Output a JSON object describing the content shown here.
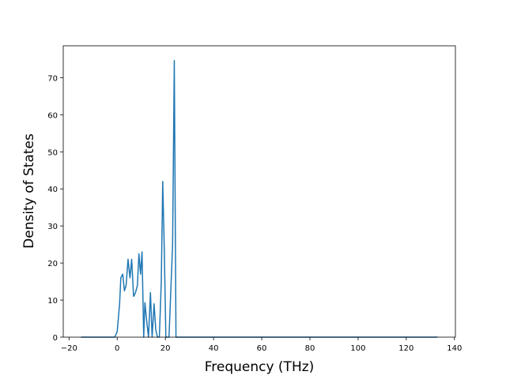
{
  "chart_data": {
    "type": "line",
    "x_label": "Frequency (THz)",
    "y_label": "Density of States",
    "color": "#1f77b4",
    "x": [
      -15,
      -1,
      0,
      1,
      1.5,
      2.3,
      3,
      3.7,
      4.5,
      5.3,
      6,
      6.8,
      7.6,
      8.4,
      9,
      9.7,
      10.3,
      11,
      11.5,
      12.3,
      13,
      13.8,
      14.5,
      15.3,
      16,
      16.7,
      17.5,
      18.3,
      18.9,
      19.5,
      20.2,
      21.5,
      23,
      23.7,
      24.4,
      25.5,
      133
    ],
    "values": [
      0,
      0,
      1.5,
      9,
      16,
      17,
      12.5,
      14,
      21,
      16,
      21,
      11,
      12,
      14,
      22.5,
      17,
      23,
      0,
      9.3,
      4,
      0,
      12,
      0,
      9,
      2,
      0,
      0,
      15,
      42,
      25,
      0,
      0,
      25,
      74.6,
      0,
      0,
      0
    ],
    "xlim": [
      -22.4,
      140.4
    ],
    "ylim": [
      0,
      78.6
    ],
    "xticks": [
      {
        "value": -20,
        "label": "−20"
      },
      0,
      20,
      40,
      60,
      80,
      100,
      120,
      140
    ],
    "yticks": [
      0,
      10,
      20,
      30,
      40,
      50,
      60,
      70
    ]
  }
}
